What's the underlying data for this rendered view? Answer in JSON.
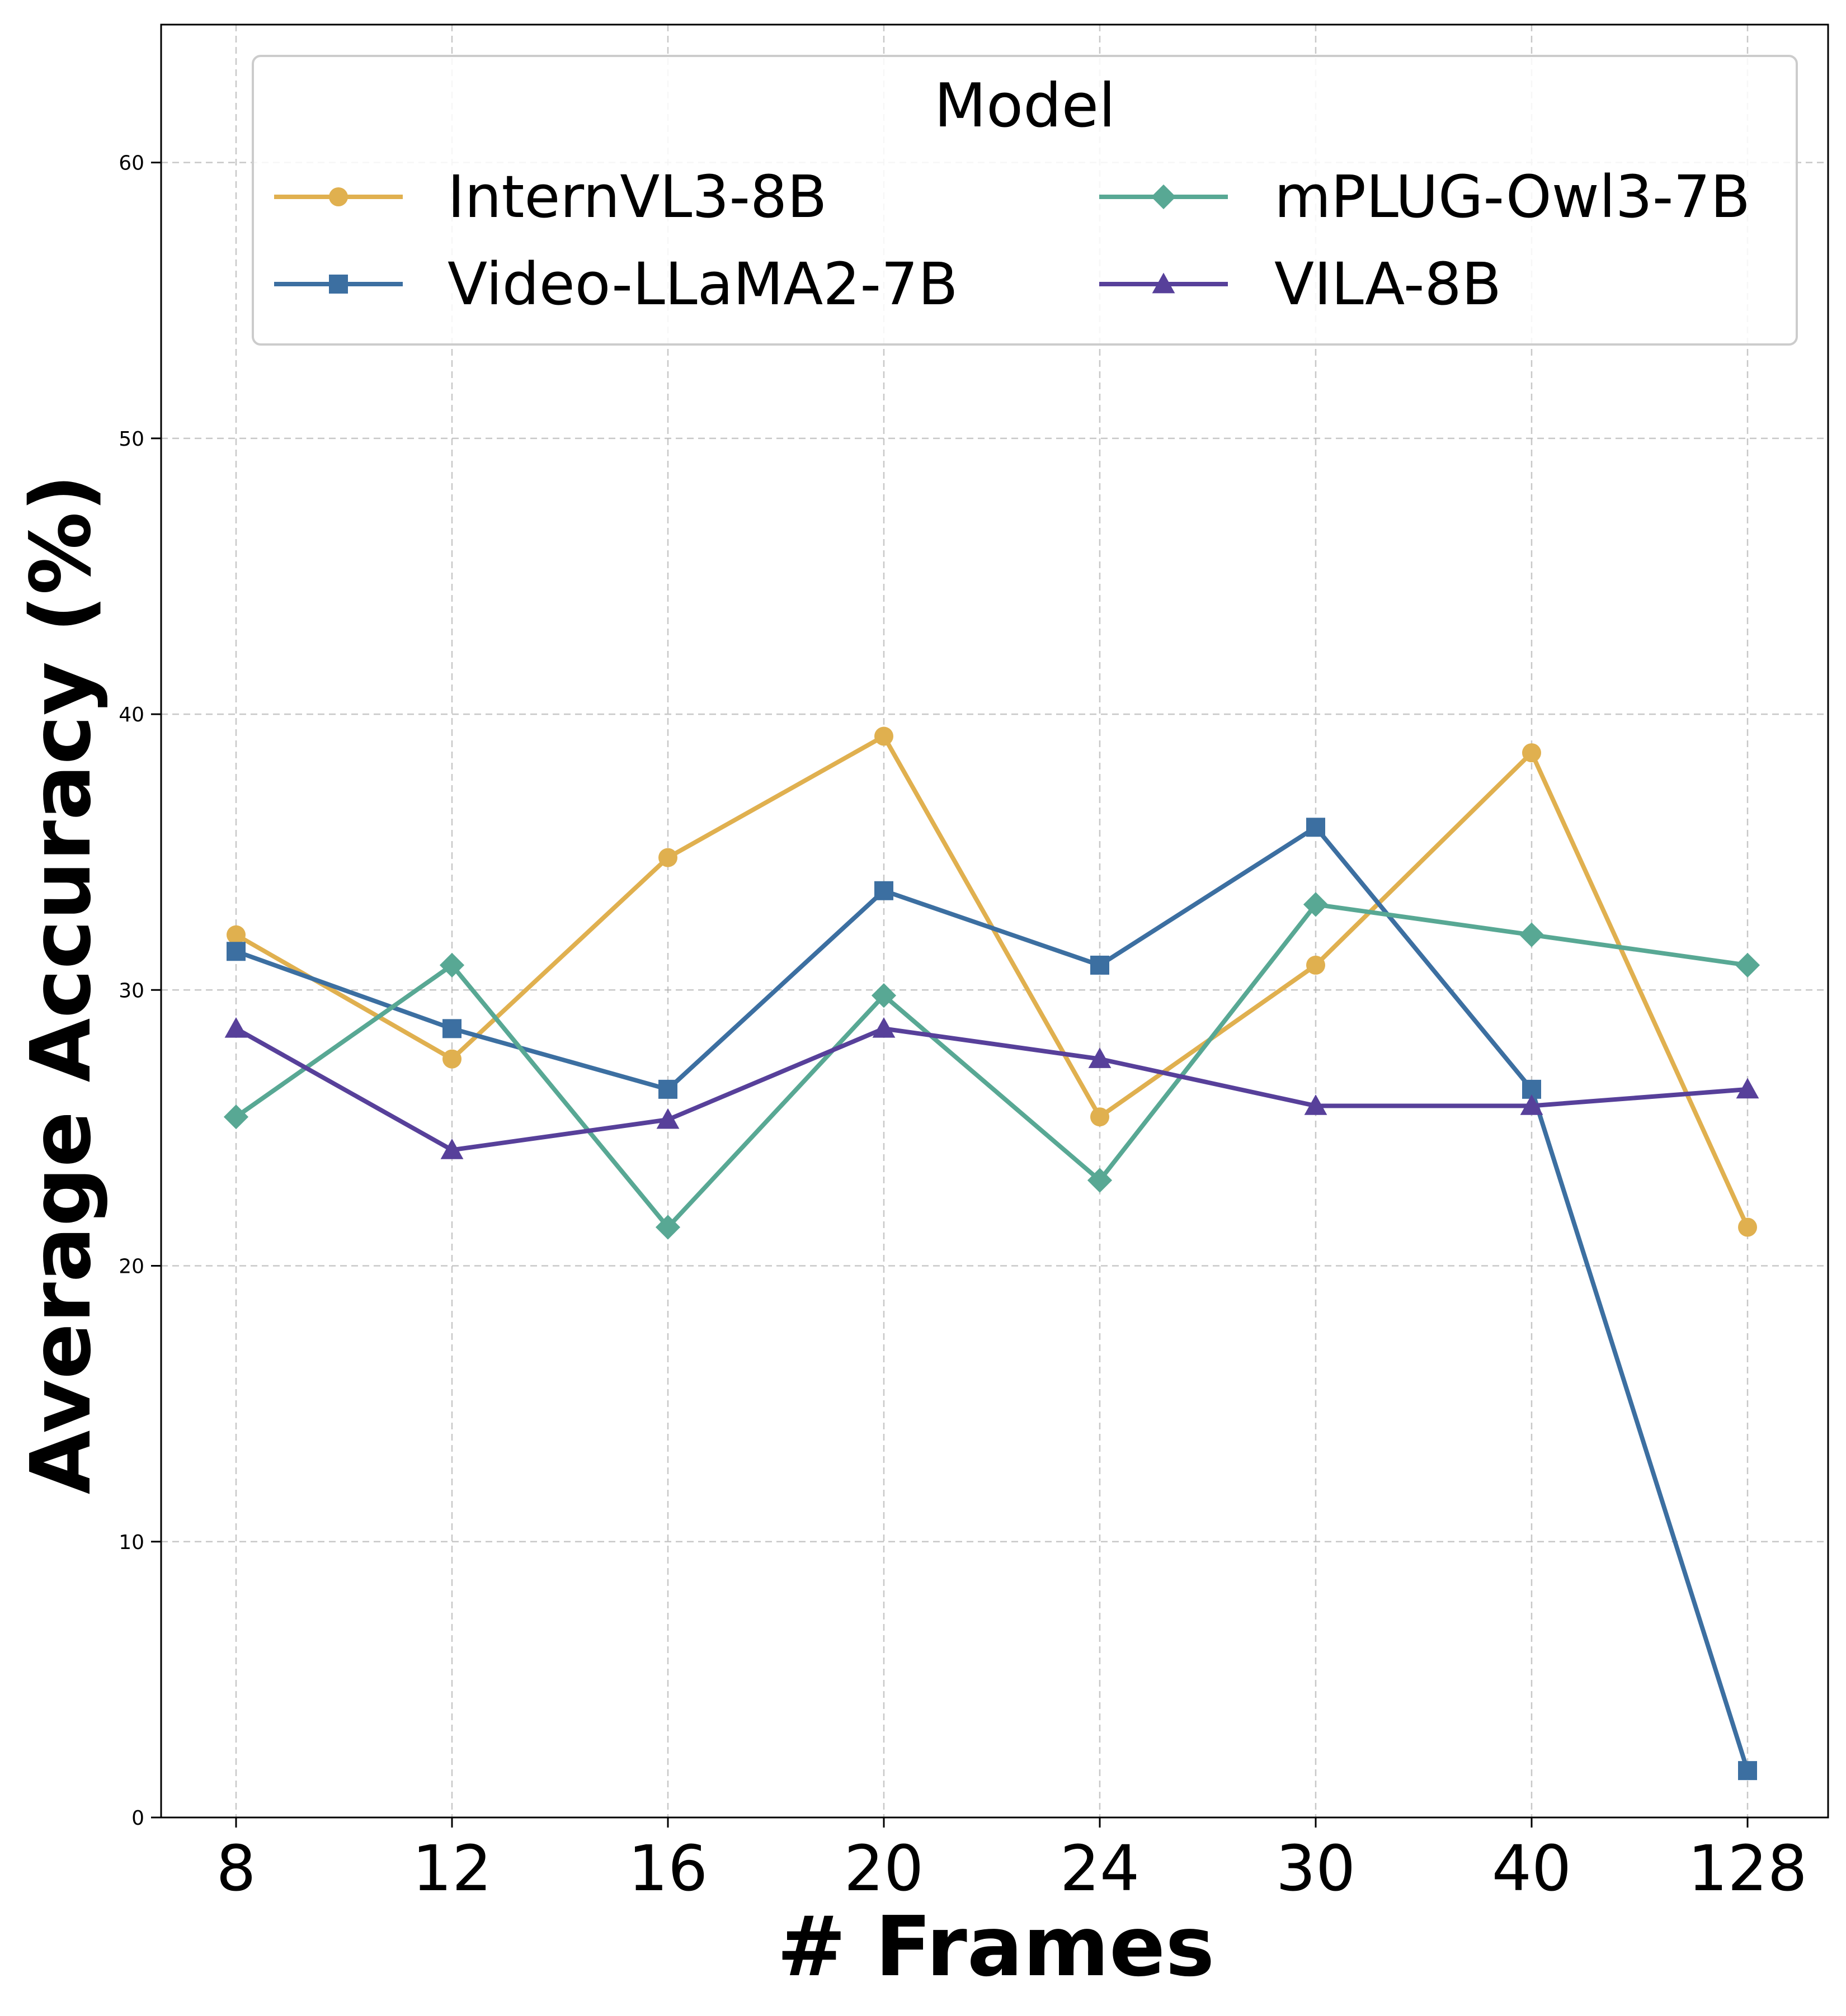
{
  "chart_data": {
    "type": "line",
    "title": "",
    "xlabel": "# Frames",
    "ylabel": "Average Accuracy (%)",
    "categories": [
      "8",
      "12",
      "16",
      "20",
      "24",
      "30",
      "40",
      "128"
    ],
    "yticks": [
      "0",
      "10",
      "20",
      "30",
      "40",
      "50",
      "60"
    ],
    "ylim": [
      0,
      65
    ],
    "grid": true,
    "legend": {
      "title": "Model",
      "position": "top"
    },
    "series": [
      {
        "name": "InternVL3-8B",
        "color": "#e0b04f",
        "marker": "circle",
        "values": [
          32.0,
          27.5,
          34.8,
          39.2,
          25.4,
          30.9,
          38.6,
          21.4
        ]
      },
      {
        "name": "Video-LLaMA2-7B",
        "color": "#3c6fa1",
        "marker": "square",
        "values": [
          31.4,
          28.6,
          26.4,
          33.6,
          30.9,
          35.9,
          26.4,
          1.7
        ]
      },
      {
        "name": "mPLUG-Owl3-7B",
        "color": "#58a894",
        "marker": "diamond",
        "values": [
          25.4,
          30.9,
          21.4,
          29.8,
          23.1,
          33.1,
          32.0,
          30.9
        ]
      },
      {
        "name": "VILA-8B",
        "color": "#57409a",
        "marker": "triangle",
        "values": [
          28.6,
          24.2,
          25.3,
          28.6,
          27.5,
          25.8,
          25.8,
          26.4
        ]
      }
    ]
  }
}
